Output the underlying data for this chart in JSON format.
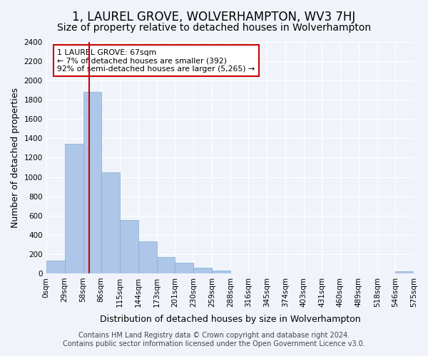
{
  "title": "1, LAUREL GROVE, WOLVERHAMPTON, WV3 7HJ",
  "subtitle": "Size of property relative to detached houses in Wolverhampton",
  "xlabel": "Distribution of detached houses by size in Wolverhampton",
  "ylabel": "Number of detached properties",
  "bin_labels": [
    "0sqm",
    "29sqm",
    "58sqm",
    "86sqm",
    "115sqm",
    "144sqm",
    "173sqm",
    "201sqm",
    "230sqm",
    "259sqm",
    "288sqm",
    "316sqm",
    "345sqm",
    "374sqm",
    "403sqm",
    "431sqm",
    "460sqm",
    "489sqm",
    "518sqm",
    "546sqm",
    "575sqm"
  ],
  "bin_edges_vals": [
    0,
    29,
    58,
    86,
    115,
    144,
    173,
    201,
    230,
    259,
    288,
    316,
    345,
    374,
    403,
    431,
    460,
    489,
    518,
    546,
    575
  ],
  "bar_heights": [
    130,
    1340,
    1880,
    1050,
    550,
    335,
    170,
    110,
    60,
    30,
    0,
    0,
    0,
    0,
    0,
    0,
    0,
    0,
    0,
    20
  ],
  "bar_color": "#aec6e8",
  "bar_edge_color": "#7bafd4",
  "vline_x": 67,
  "vline_color": "#cc0000",
  "annotation_line1": "1 LAUREL GROVE: 67sqm",
  "annotation_line2": "← 7% of detached houses are smaller (392)",
  "annotation_line3": "92% of semi-detached houses are larger (5,265) →",
  "ylim": [
    0,
    2400
  ],
  "yticks": [
    0,
    200,
    400,
    600,
    800,
    1000,
    1200,
    1400,
    1600,
    1800,
    2000,
    2200,
    2400
  ],
  "footer_line1": "Contains HM Land Registry data © Crown copyright and database right 2024.",
  "footer_line2": "Contains public sector information licensed under the Open Government Licence v3.0.",
  "bg_color": "#f0f4fa",
  "grid_color": "#ffffff",
  "title_fontsize": 12,
  "subtitle_fontsize": 10,
  "xlabel_fontsize": 9,
  "ylabel_fontsize": 9,
  "tick_fontsize": 7.5,
  "footer_fontsize": 7
}
